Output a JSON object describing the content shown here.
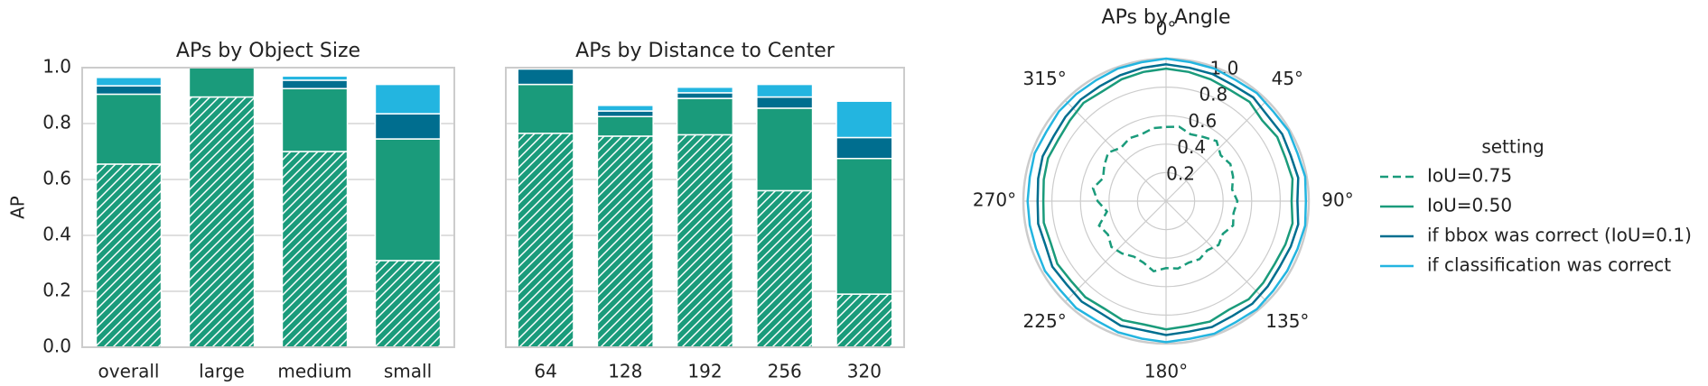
{
  "chart_data": [
    {
      "type": "bar",
      "stacked": true,
      "title": "APs by Object Size",
      "ylabel": "AP",
      "categories": [
        "overall",
        "large",
        "medium",
        "small"
      ],
      "series": [
        {
          "color": "#1a9b7b",
          "hatch": "//",
          "values": [
            0.655,
            0.895,
            0.7,
            0.31
          ]
        },
        {
          "color": "#1a9b7b",
          "values": [
            0.25,
            0.105,
            0.225,
            0.435
          ]
        },
        {
          "color": "#006e8f",
          "values": [
            0.03,
            0,
            0.03,
            0.09
          ]
        },
        {
          "color": "#23b5e0",
          "values": [
            0.03,
            0,
            0.015,
            0.105
          ]
        }
      ],
      "ylim": [
        0,
        1
      ],
      "yticks": [
        {
          "value": 0,
          "label": "0.0"
        },
        0.2,
        0.4,
        0.6,
        0.8,
        {
          "value": 1,
          "label": "1.0"
        }
      ],
      "grid": true
    },
    {
      "type": "bar",
      "stacked": true,
      "sharey": true,
      "title": "APs by Distance to Center",
      "categories": [
        "64",
        "128",
        "192",
        "256",
        "320"
      ],
      "series": [
        {
          "color": "#1a9b7b",
          "hatch": "//",
          "values": [
            0.765,
            0.755,
            0.76,
            0.56,
            0.19
          ]
        },
        {
          "color": "#1a9b7b",
          "values": [
            0.175,
            0.07,
            0.13,
            0.295,
            0.485
          ]
        },
        {
          "color": "#006e8f",
          "values": [
            0.055,
            0.02,
            0.02,
            0.04,
            0.075
          ]
        },
        {
          "color": "#23b5e0",
          "values": [
            0,
            0.02,
            0.02,
            0.045,
            0.13
          ]
        }
      ],
      "ylim": [
        0,
        1
      ],
      "yticks": [
        0,
        0.2,
        0.4,
        0.6,
        0.8,
        1
      ],
      "grid": true
    },
    {
      "type": "polar",
      "title": "APs by Angle",
      "legend_title": "setting",
      "legend": "outside right",
      "grid": true,
      "x": [
        0,
        10,
        20,
        30,
        40,
        50,
        60,
        70,
        80,
        90,
        100,
        110,
        120,
        130,
        140,
        150,
        160,
        170,
        180,
        190,
        200,
        210,
        220,
        230,
        240,
        250,
        260,
        270,
        280,
        290,
        300,
        310,
        320,
        330,
        340,
        350
      ],
      "series": [
        {
          "name": "IoU=0.75",
          "color": "#1a9b7b",
          "linestyle": "dashed",
          "values": [
            0.52,
            0.53,
            0.5,
            0.52,
            0.55,
            0.5,
            0.52,
            0.5,
            0.47,
            0.5,
            0.48,
            0.5,
            0.46,
            0.48,
            0.45,
            0.47,
            0.46,
            0.48,
            0.47,
            0.5,
            0.46,
            0.45,
            0.48,
            0.5,
            0.47,
            0.5,
            0.42,
            0.48,
            0.52,
            0.47,
            0.5,
            0.53,
            0.49,
            0.51,
            0.5,
            0.52
          ]
        },
        {
          "name": "IoU=0.50",
          "color": "#1a9b7b",
          "linestyle": "solid",
          "values": [
            0.93,
            0.92,
            0.91,
            0.9,
            0.91,
            0.88,
            0.9,
            0.89,
            0.9,
            0.88,
            0.9,
            0.89,
            0.88,
            0.89,
            0.9,
            0.88,
            0.9,
            0.89,
            0.9,
            0.88,
            0.89,
            0.87,
            0.88,
            0.87,
            0.88,
            0.86,
            0.87,
            0.86,
            0.87,
            0.88,
            0.87,
            0.88,
            0.9,
            0.89,
            0.91,
            0.92
          ]
        },
        {
          "name": "if bbox was correct (IoU=0.1)",
          "color": "#006e8f",
          "linestyle": "solid",
          "values": [
            0.96,
            0.95,
            0.95,
            0.94,
            0.95,
            0.93,
            0.94,
            0.93,
            0.94,
            0.92,
            0.94,
            0.93,
            0.92,
            0.93,
            0.94,
            0.93,
            0.94,
            0.93,
            0.94,
            0.92,
            0.93,
            0.91,
            0.92,
            0.91,
            0.92,
            0.9,
            0.91,
            0.9,
            0.91,
            0.92,
            0.91,
            0.92,
            0.93,
            0.93,
            0.94,
            0.95
          ]
        },
        {
          "name": "if classification was correct",
          "color": "#23b5e0",
          "linestyle": "solid",
          "values": [
            1.0,
            0.99,
            0.99,
            0.98,
            0.99,
            0.98,
            0.99,
            0.98,
            0.99,
            0.98,
            0.99,
            0.98,
            0.98,
            0.98,
            0.99,
            0.98,
            0.99,
            0.98,
            0.99,
            0.98,
            0.98,
            0.97,
            0.98,
            0.97,
            0.98,
            0.97,
            0.97,
            0.97,
            0.97,
            0.98,
            0.97,
            0.98,
            0.98,
            0.98,
            0.99,
            0.99
          ]
        }
      ],
      "rlim": [
        0,
        1
      ],
      "rticks": [
        0.2,
        0.4,
        0.6,
        0.8,
        {
          "value": 1,
          "label": "1.0"
        }
      ],
      "thetaticks": [
        {
          "value": 0,
          "label": "0°"
        },
        {
          "value": 45,
          "label": "45°"
        },
        {
          "value": 90,
          "label": "90°"
        },
        {
          "value": 135,
          "label": "135°"
        },
        {
          "value": 180,
          "label": "180°"
        },
        {
          "value": 225,
          "label": "225°"
        },
        {
          "value": 270,
          "label": "270°"
        },
        {
          "value": 315,
          "label": "315°"
        }
      ]
    }
  ]
}
